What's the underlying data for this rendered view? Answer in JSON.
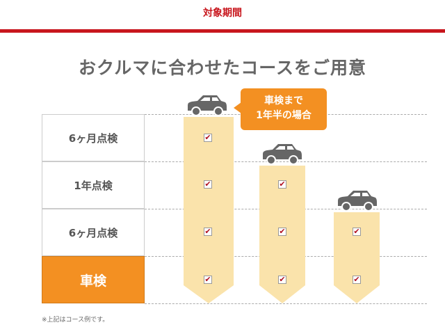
{
  "header": {
    "title": "対象期間",
    "accent": "#c8161d"
  },
  "main": {
    "title": "おクルマに合わせたコースをご用意",
    "rows": [
      {
        "label": "6ヶ月点検"
      },
      {
        "label": "1年点検"
      },
      {
        "label": "6ヶ月点検"
      },
      {
        "label": "車検",
        "highlight": true
      }
    ],
    "bubble": {
      "line1": "車検まで",
      "line2": "1年半の場合"
    },
    "columns": [
      {
        "checks": 4,
        "icon": "car-icon"
      },
      {
        "checks": 3,
        "icon": "car-icon"
      },
      {
        "checks": 2,
        "icon": "car-icon"
      }
    ],
    "check_symbol": "✔",
    "note": "※上記はコース例です。",
    "colors": {
      "orange": "#f39022",
      "bar": "#fae3ab",
      "car": "#666666"
    }
  }
}
